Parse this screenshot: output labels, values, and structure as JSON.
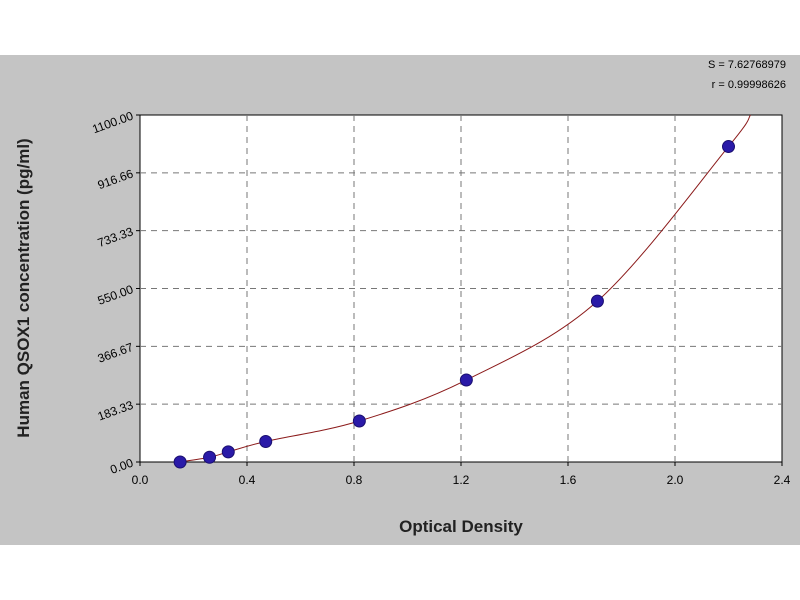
{
  "chart_data": {
    "type": "scatter",
    "xlabel": "Optical Density",
    "ylabel": "Human QSOX1 concentration (pg/ml)",
    "xlim": [
      0.0,
      2.4
    ],
    "ylim": [
      0.0,
      1100.0
    ],
    "x_ticks": [
      "0.0",
      "0.4",
      "0.8",
      "1.2",
      "1.6",
      "2.0",
      "2.4"
    ],
    "y_ticks": [
      "0.00",
      "183.33",
      "366.67",
      "550.00",
      "733.33",
      "916.66",
      "1100.00"
    ],
    "grid": true,
    "stats": {
      "s": "S = 7.62768979",
      "r": "r = 0.99998626"
    },
    "series": [
      {
        "points": [
          {
            "x": 0.15,
            "y": 0
          },
          {
            "x": 0.26,
            "y": 15
          },
          {
            "x": 0.33,
            "y": 32
          },
          {
            "x": 0.47,
            "y": 65
          },
          {
            "x": 0.82,
            "y": 130
          },
          {
            "x": 1.22,
            "y": 260
          },
          {
            "x": 1.71,
            "y": 510
          },
          {
            "x": 2.2,
            "y": 1000
          }
        ],
        "fit_curve": true,
        "point_color": "#2a1aa8",
        "line_color": "#8b1a1a"
      }
    ]
  }
}
